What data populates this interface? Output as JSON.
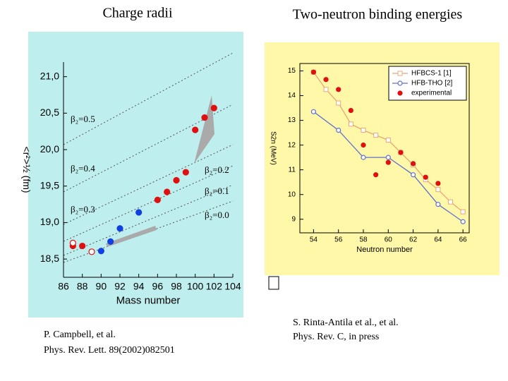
{
  "chart_data": [
    {
      "type": "scatter",
      "title": "Charge radii",
      "xlabel": "Mass number",
      "ylabel": "<r²>½ (fm)",
      "xlim": [
        86,
        104
      ],
      "ylim": [
        18.25,
        21.2
      ],
      "xticks": [
        86,
        88,
        90,
        92,
        94,
        96,
        98,
        100,
        102,
        104
      ],
      "yticks": [
        {
          "value": 18.5,
          "label": "18,5"
        },
        {
          "value": 19,
          "label": "19,0"
        },
        {
          "value": 19.5,
          "label": "19,5"
        },
        {
          "value": 20,
          "label": "20,0"
        },
        {
          "value": 20.5,
          "label": "20,5"
        },
        {
          "value": 21,
          "label": "21,0"
        }
      ],
      "series": [
        {
          "color": "#e01010",
          "marker": "filled",
          "x": [
            87,
            88,
            96,
            97,
            98,
            99,
            100,
            101,
            102
          ],
          "values": [
            18.68,
            18.68,
            19.31,
            19.42,
            19.58,
            19.69,
            20.27,
            20.44,
            20.57
          ]
        },
        {
          "color": "#1040e0",
          "marker": "filled",
          "x": [
            90,
            91,
            92,
            94
          ],
          "values": [
            18.61,
            18.74,
            18.92,
            19.14
          ]
        },
        {
          "color": "#e01010",
          "marker": "open",
          "x": [
            87,
            89
          ],
          "values": [
            18.72,
            18.6
          ]
        }
      ],
      "annotations": [
        "β₂=0.5",
        "β₂=0.4",
        "β₂=0.3",
        "β₂=0.2",
        "β₂=0.1",
        "β₂=0.0"
      ],
      "caption": [
        "P. Campbell, et al.",
        "Phys. Rev. Lett. 89(2002)082501"
      ]
    },
    {
      "type": "line",
      "title": "Two-neutron binding energies",
      "xlabel": "Neutron number",
      "ylabel": "S2n (MeV)",
      "xlim": [
        52.9,
        66.5
      ],
      "ylim": [
        8.45,
        15.3
      ],
      "xticks": [
        54,
        56,
        58,
        60,
        62,
        64,
        66
      ],
      "yticks": [
        9,
        10,
        11,
        12,
        13,
        14,
        15
      ],
      "legend": "upper right",
      "series": [
        {
          "name": "HFBCS-1 [1]",
          "color": "#e8a878",
          "marker": "square",
          "line": true,
          "x": [
            54,
            55,
            56,
            57,
            58,
            59,
            60,
            61,
            62,
            63,
            64,
            65,
            66
          ],
          "values": [
            14.95,
            14.25,
            13.7,
            12.85,
            12.6,
            12.4,
            12.2,
            11.7,
            11.2,
            10.6,
            10.2,
            9.7,
            9.3
          ]
        },
        {
          "name": "HFB-THO [2]",
          "color": "#6070d0",
          "marker": "circle",
          "line": true,
          "x": [
            54,
            56,
            58,
            60,
            62,
            64,
            66
          ],
          "values": [
            13.35,
            12.6,
            11.5,
            11.5,
            10.8,
            9.6,
            8.9
          ]
        },
        {
          "name": "experimental",
          "color": "#e01010",
          "marker": "dot",
          "line": false,
          "x": [
            54,
            55,
            56,
            57,
            58,
            59,
            60,
            61,
            62,
            63,
            64
          ],
          "values": [
            14.95,
            14.65,
            14.25,
            13.4,
            12.0,
            10.8,
            11.3,
            11.7,
            11.25,
            10.7,
            10.45
          ]
        }
      ],
      "caption": [
        "S. Rinta-Antila et al., et al.",
        "Phys. Rev. C, in press"
      ]
    }
  ]
}
